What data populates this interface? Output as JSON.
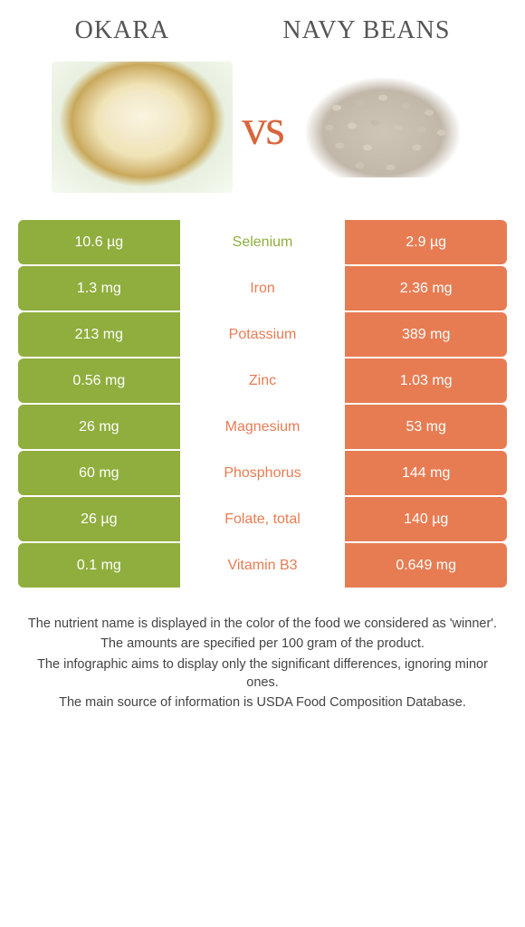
{
  "colors": {
    "left": "#8fae3d",
    "right": "#e77c53",
    "left_text": "#8fae3d",
    "right_text": "#e77c53"
  },
  "food_left": "OKARA",
  "food_right": "NAVY BEANS",
  "vs": "vs",
  "rows": [
    {
      "left": "10.6 µg",
      "label": "Selenium",
      "right": "2.9 µg",
      "winner": "left"
    },
    {
      "left": "1.3 mg",
      "label": "Iron",
      "right": "2.36 mg",
      "winner": "right"
    },
    {
      "left": "213 mg",
      "label": "Potassium",
      "right": "389 mg",
      "winner": "right"
    },
    {
      "left": "0.56 mg",
      "label": "Zinc",
      "right": "1.03 mg",
      "winner": "right"
    },
    {
      "left": "26 mg",
      "label": "Magnesium",
      "right": "53 mg",
      "winner": "right"
    },
    {
      "left": "60 mg",
      "label": "Phosphorus",
      "right": "144 mg",
      "winner": "right"
    },
    {
      "left": "26 µg",
      "label": "Folate, total",
      "right": "140 µg",
      "winner": "right"
    },
    {
      "left": "0.1 mg",
      "label": "Vitamin B3",
      "right": "0.649 mg",
      "winner": "right"
    }
  ],
  "footer": [
    "The nutrient name is displayed in the color of the food we considered as 'winner'.",
    "The amounts are specified per 100 gram of the product.",
    "The infographic aims to display only the significant differences, ignoring minor ones.",
    "The main source of information is USDA Food Composition Database."
  ]
}
